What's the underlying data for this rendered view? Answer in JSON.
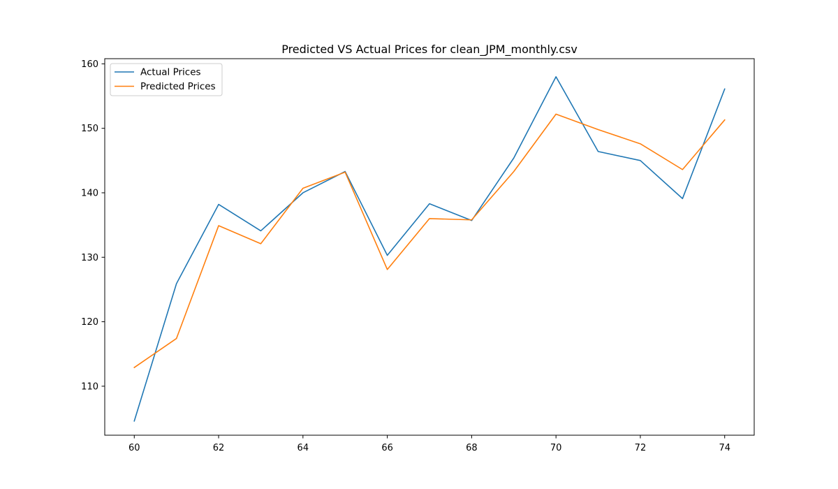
{
  "chart_data": {
    "type": "line",
    "title": "Predicted VS Actual Prices for clean_JPM_monthly.csv",
    "xlabel": "",
    "ylabel": "",
    "x": [
      60,
      61,
      62,
      63,
      64,
      65,
      66,
      67,
      68,
      69,
      70,
      71,
      72,
      73,
      74
    ],
    "series": [
      {
        "name": "Actual Prices",
        "color": "#1f77b4",
        "values": [
          104.6,
          125.9,
          138.2,
          134.1,
          140.0,
          143.3,
          130.3,
          138.3,
          135.7,
          145.4,
          158.0,
          146.4,
          145.0,
          139.1,
          156.1
        ]
      },
      {
        "name": "Predicted Prices",
        "color": "#ff7f0e",
        "values": [
          112.9,
          117.4,
          134.9,
          132.1,
          140.7,
          143.2,
          128.1,
          136.0,
          135.8,
          143.3,
          152.2,
          149.8,
          147.6,
          143.6,
          151.3
        ]
      }
    ],
    "xlim": [
      59.3,
      74.7
    ],
    "ylim": [
      102.4,
      160.8
    ],
    "xticks": [
      60,
      62,
      64,
      66,
      68,
      70,
      72,
      74
    ],
    "yticks": [
      110,
      120,
      130,
      140,
      150,
      160
    ],
    "grid": false,
    "legend_position": "upper-left"
  }
}
